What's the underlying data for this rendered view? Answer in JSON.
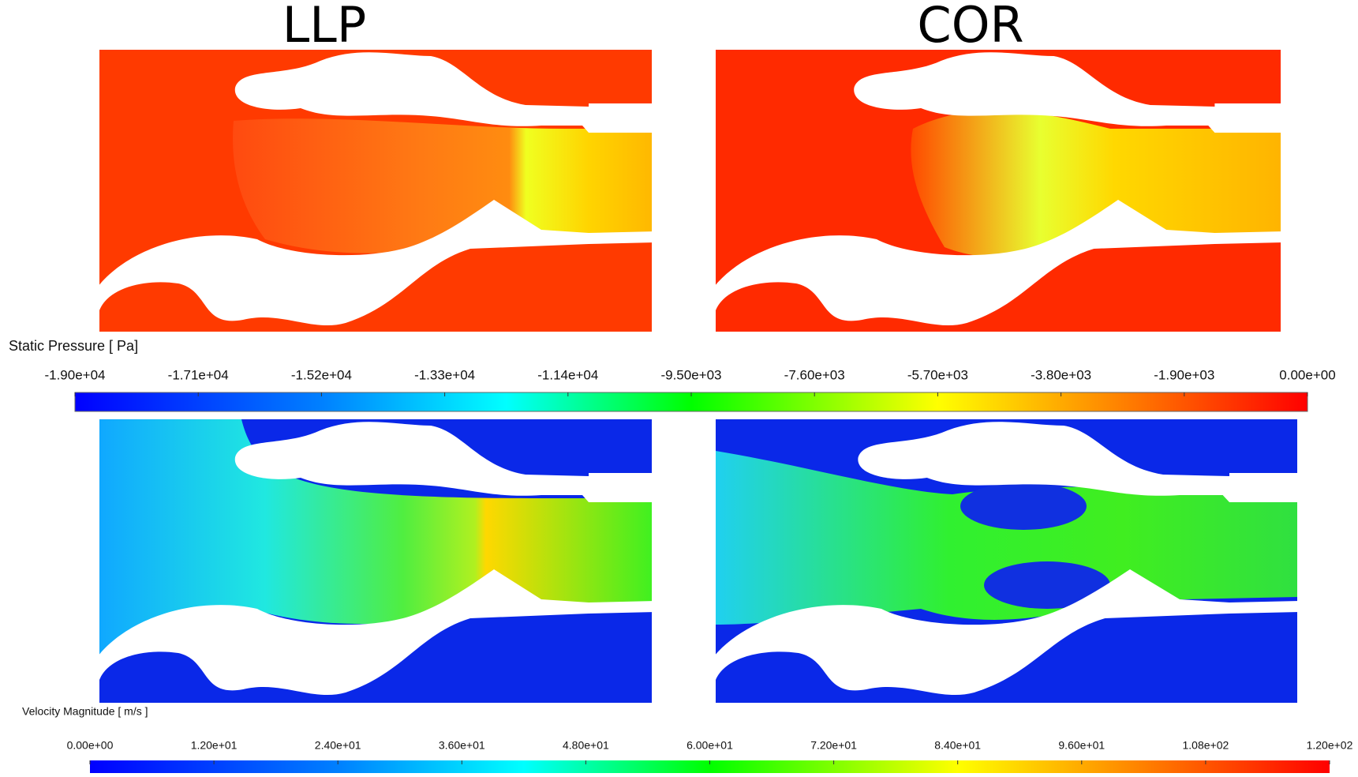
{
  "columns": [
    "LLP",
    "COR"
  ],
  "colorbars": [
    {
      "title": "Static Pressure [ Pa]",
      "ticks": [
        "-1.90e+04",
        "-1.71e+04",
        "-1.52e+04",
        "-1.33e+04",
        "-1.14e+04",
        "-9.50e+03",
        "-7.60e+03",
        "-5.70e+03",
        "-3.80e+03",
        "-1.90e+03",
        "0.00e+00"
      ]
    },
    {
      "title": "Velocity Magnitude [ m/s ]",
      "ticks": [
        "0.00e+00",
        "1.20e+01",
        "2.40e+01",
        "3.60e+01",
        "4.80e+01",
        "6.00e+01",
        "7.20e+01",
        "8.40e+01",
        "9.60e+01",
        "1.08e+02",
        "1.20e+02"
      ]
    }
  ]
}
